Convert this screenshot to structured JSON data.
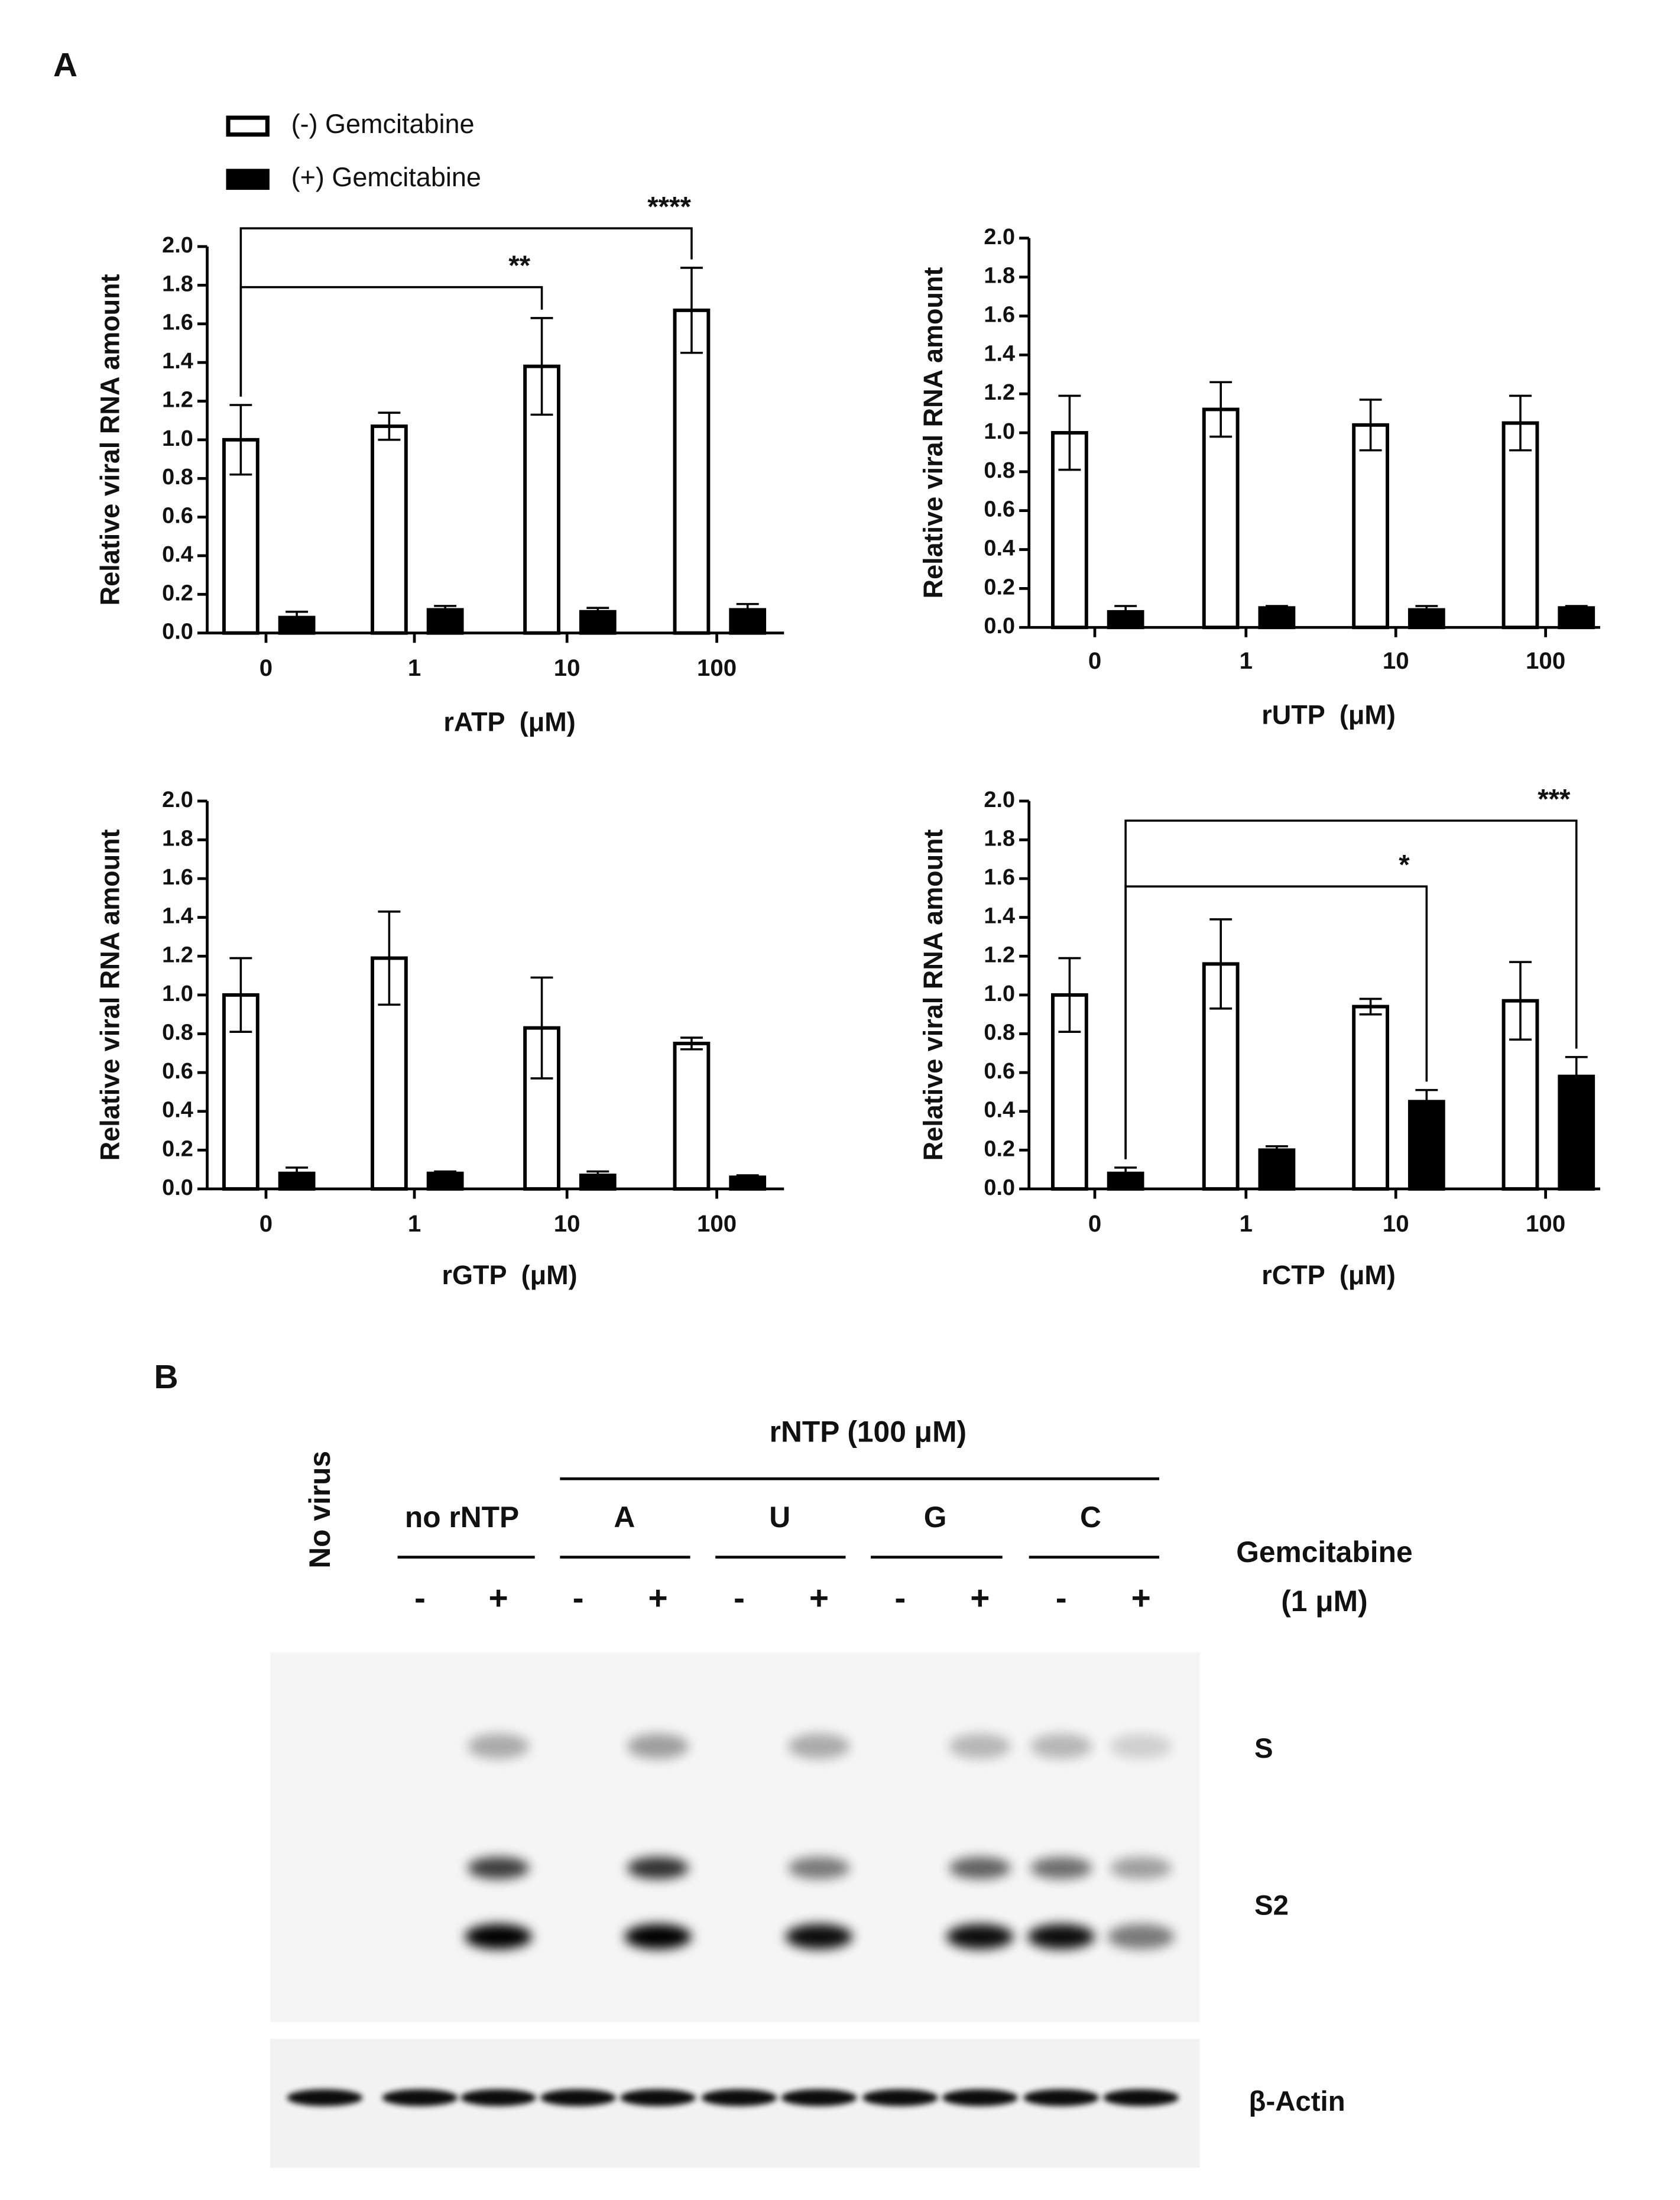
{
  "panel_a": {
    "label": "A"
  },
  "chart_data": [
    {
      "type": "bar",
      "ylabel": "Relative viral RNA amount",
      "xlabel": "rATP  (μM)",
      "categories": [
        "0",
        "1",
        "10",
        "100"
      ],
      "series": [
        {
          "name": "(-) Gemcitabine",
          "color": "#ffffff",
          "values": [
            1.0,
            1.07,
            1.38,
            1.67
          ],
          "errors": [
            0.18,
            0.07,
            0.25,
            0.22
          ]
        },
        {
          "name": "(+) Gemcitabine",
          "color": "#000000",
          "values": [
            0.08,
            0.12,
            0.11,
            0.12
          ],
          "errors": [
            0.03,
            0.02,
            0.02,
            0.03
          ]
        }
      ],
      "ylim": [
        0,
        2
      ],
      "yticks": [
        {
          "value": 0,
          "label": "0.0"
        },
        {
          "value": 0.2,
          "label": "0.2"
        },
        {
          "value": 0.4,
          "label": "0.4"
        },
        {
          "value": 0.6,
          "label": "0.6"
        },
        {
          "value": 0.8,
          "label": "0.8"
        },
        {
          "value": 1,
          "label": "1.0"
        },
        {
          "value": 1.2,
          "label": "1.2"
        },
        {
          "value": 1.4,
          "label": "1.4"
        },
        {
          "value": 1.6,
          "label": "1.6"
        },
        {
          "value": 1.8,
          "label": "1.8"
        },
        {
          "value": 2,
          "label": "2.0"
        }
      ],
      "annotations": [
        {
          "text": "**",
          "from": "0",
          "to": "10"
        },
        {
          "text": "****",
          "from": "0",
          "to": "100"
        }
      ]
    },
    {
      "type": "bar",
      "ylabel": "Relative viral RNA amount",
      "xlabel": "rUTP  (μM)",
      "categories": [
        "0",
        "1",
        "10",
        "100"
      ],
      "series": [
        {
          "color": "#ffffff",
          "values": [
            1.0,
            1.12,
            1.04,
            1.05
          ],
          "errors": [
            0.19,
            0.14,
            0.13,
            0.14
          ]
        },
        {
          "color": "#000000",
          "values": [
            0.08,
            0.1,
            0.09,
            0.1
          ],
          "errors": [
            0.03,
            0.01,
            0.02,
            0.01
          ]
        }
      ],
      "ylim": [
        0,
        2
      ],
      "yticks": [
        {
          "value": 0,
          "label": "0.0"
        },
        {
          "value": 0.2,
          "label": "0.2"
        },
        {
          "value": 0.4,
          "label": "0.4"
        },
        {
          "value": 0.6,
          "label": "0.6"
        },
        {
          "value": 0.8,
          "label": "0.8"
        },
        {
          "value": 1,
          "label": "1.0"
        },
        {
          "value": 1.2,
          "label": "1.2"
        },
        {
          "value": 1.4,
          "label": "1.4"
        },
        {
          "value": 1.6,
          "label": "1.6"
        },
        {
          "value": 1.8,
          "label": "1.8"
        },
        {
          "value": 2,
          "label": "2.0"
        }
      ]
    },
    {
      "type": "bar",
      "ylabel": "Relative viral RNA amount",
      "xlabel": "rGTP  (μM)",
      "categories": [
        "0",
        "1",
        "10",
        "100"
      ],
      "series": [
        {
          "color": "#ffffff",
          "values": [
            1.0,
            1.19,
            0.83,
            0.75
          ],
          "errors": [
            0.19,
            0.24,
            0.26,
            0.03
          ]
        },
        {
          "color": "#000000",
          "values": [
            0.08,
            0.08,
            0.07,
            0.06
          ],
          "errors": [
            0.03,
            0.01,
            0.02,
            0.01
          ]
        }
      ],
      "ylim": [
        0,
        2
      ],
      "yticks": [
        {
          "value": 0,
          "label": "0.0"
        },
        {
          "value": 0.2,
          "label": "0.2"
        },
        {
          "value": 0.4,
          "label": "0.4"
        },
        {
          "value": 0.6,
          "label": "0.6"
        },
        {
          "value": 0.8,
          "label": "0.8"
        },
        {
          "value": 1,
          "label": "1.0"
        },
        {
          "value": 1.2,
          "label": "1.2"
        },
        {
          "value": 1.4,
          "label": "1.4"
        },
        {
          "value": 1.6,
          "label": "1.6"
        },
        {
          "value": 1.8,
          "label": "1.8"
        },
        {
          "value": 2,
          "label": "2.0"
        }
      ]
    },
    {
      "type": "bar",
      "ylabel": "Relative viral RNA amount",
      "xlabel": "rCTP  (μM)",
      "categories": [
        "0",
        "1",
        "10",
        "100"
      ],
      "series": [
        {
          "color": "#ffffff",
          "values": [
            1.0,
            1.16,
            0.94,
            0.97
          ],
          "errors": [
            0.19,
            0.23,
            0.04,
            0.2
          ]
        },
        {
          "color": "#000000",
          "values": [
            0.08,
            0.2,
            0.45,
            0.58
          ],
          "errors": [
            0.03,
            0.02,
            0.06,
            0.1
          ]
        }
      ],
      "ylim": [
        0,
        2
      ],
      "yticks": [
        {
          "value": 0,
          "label": "0.0"
        },
        {
          "value": 0.2,
          "label": "0.2"
        },
        {
          "value": 0.4,
          "label": "0.4"
        },
        {
          "value": 0.6,
          "label": "0.6"
        },
        {
          "value": 0.8,
          "label": "0.8"
        },
        {
          "value": 1,
          "label": "1.0"
        },
        {
          "value": 1.2,
          "label": "1.2"
        },
        {
          "value": 1.4,
          "label": "1.4"
        },
        {
          "value": 1.6,
          "label": "1.6"
        },
        {
          "value": 1.8,
          "label": "1.8"
        },
        {
          "value": 2,
          "label": "2.0"
        }
      ],
      "annotations": [
        {
          "text": "*",
          "from": "0",
          "to": "10"
        },
        {
          "text": "***",
          "from": "0",
          "to": "100"
        }
      ]
    }
  ],
  "panel_b": {
    "label": "B",
    "no_virus": "No virus",
    "header": "rNTP (100 μM)",
    "groups": [
      "no rNTP",
      "A",
      "U",
      "G",
      "C"
    ],
    "treatment": "Gemcitabine",
    "dose": "(1 μM)",
    "lanes": [
      "-",
      "+",
      "-",
      "+",
      "-",
      "+",
      "-",
      "+",
      "-",
      "+"
    ],
    "bands": [
      "S",
      "S2",
      "β-Actin"
    ]
  }
}
